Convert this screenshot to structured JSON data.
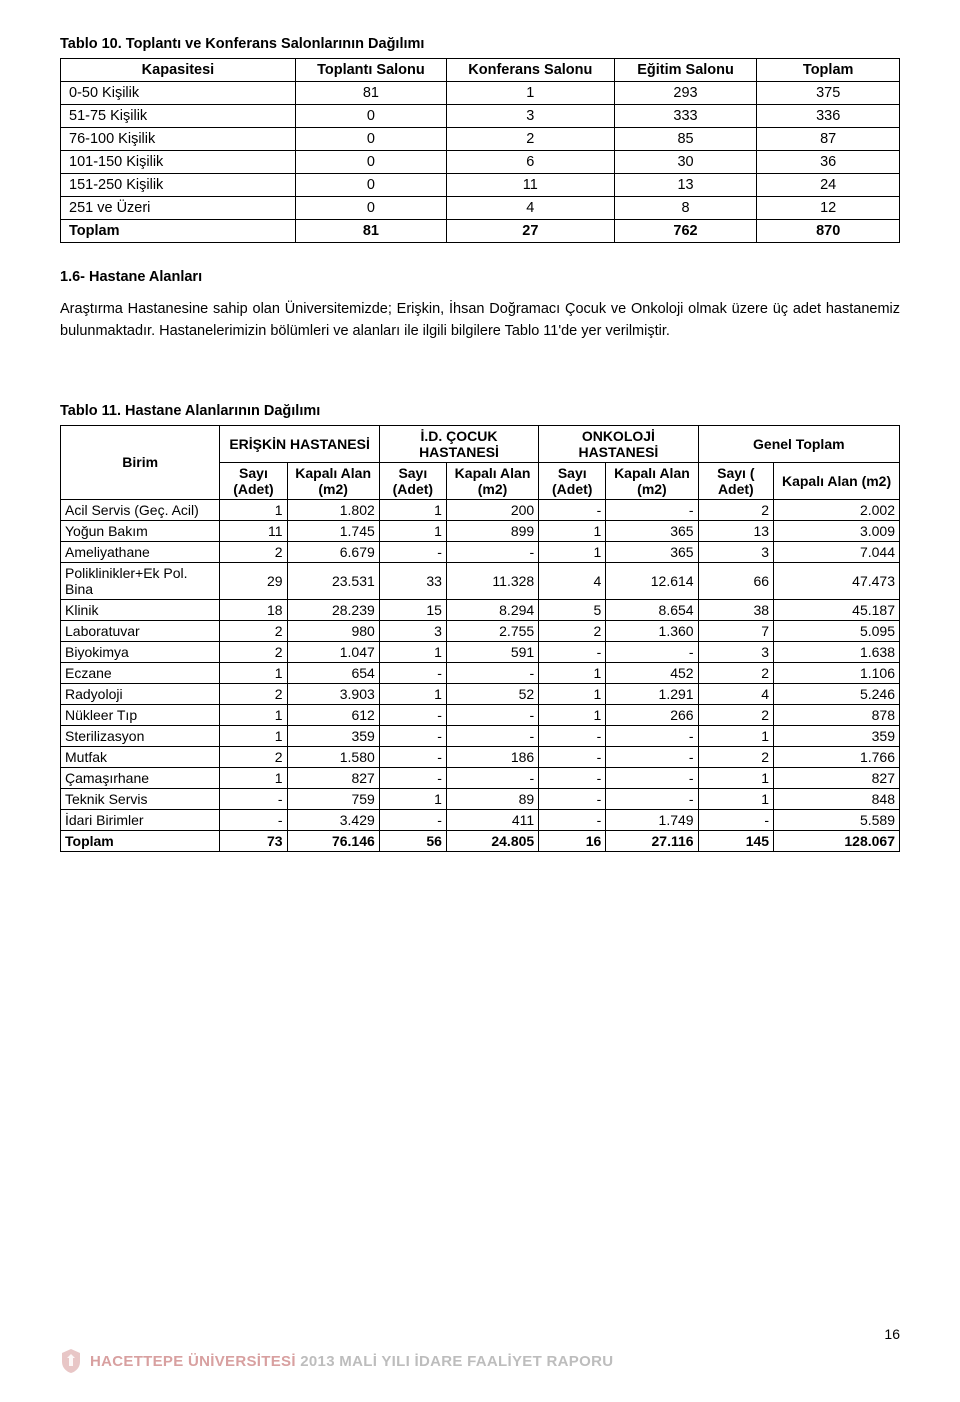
{
  "table10": {
    "title": "Tablo 10. Toplantı ve Konferans Salonlarının Dağılımı",
    "columns": [
      "Kapasitesi",
      "Toplantı Salonu",
      "Konferans Salonu",
      "Eğitim Salonu",
      "Toplam"
    ],
    "rows": [
      {
        "label": "0-50 Kişilik",
        "v": [
          "81",
          "1",
          "293",
          "375"
        ]
      },
      {
        "label": "51-75 Kişilik",
        "v": [
          "0",
          "3",
          "333",
          "336"
        ]
      },
      {
        "label": "76-100 Kişilik",
        "v": [
          "0",
          "2",
          "85",
          "87"
        ]
      },
      {
        "label": "101-150 Kişilik",
        "v": [
          "0",
          "6",
          "30",
          "36"
        ]
      },
      {
        "label": "151-250 Kişilik",
        "v": [
          "0",
          "11",
          "13",
          "24"
        ]
      },
      {
        "label": "251 ve Üzeri",
        "v": [
          "0",
          "4",
          "8",
          "12"
        ]
      }
    ],
    "total": {
      "label": "Toplam",
      "v": [
        "81",
        "27",
        "762",
        "870"
      ]
    }
  },
  "section": {
    "heading": "1.6- Hastane Alanları",
    "para": "Araştırma Hastanesine sahip olan Üniversitemizde; Erişkin, İhsan Doğramacı Çocuk ve Onkoloji olmak üzere üç adet hastanemiz bulunmaktadır. Hastanelerimizin bölümleri ve alanları ile ilgili bilgilere Tablo 11'de yer verilmiştir."
  },
  "table11": {
    "title": "Tablo 11. Hastane Alanlarının Dağılımı",
    "birim_label": "Birim",
    "group_headers": [
      "ERİŞKİN HASTANESİ",
      "İ.D. ÇOCUK HASTANESİ",
      "ONKOLOJİ HASTANESİ",
      "Genel Toplam"
    ],
    "sub_headers_pair": [
      "Sayı (Adet)",
      "Kapalı Alan (m2)"
    ],
    "sub_headers_total": [
      "Sayı ( Adet)",
      "Kapalı Alan (m2)"
    ],
    "col_widths": [
      "19%",
      "8%",
      "11%",
      "8%",
      "11%",
      "8%",
      "11%",
      "9%",
      "15%"
    ],
    "rows": [
      {
        "label": "Acil Servis (Geç. Acil)",
        "v": [
          "1",
          "1.802",
          "1",
          "200",
          "-",
          "-",
          "2",
          "2.002"
        ]
      },
      {
        "label": "Yoğun Bakım",
        "v": [
          "11",
          "1.745",
          "1",
          "899",
          "1",
          "365",
          "13",
          "3.009"
        ]
      },
      {
        "label": "Ameliyathane",
        "v": [
          "2",
          "6.679",
          "-",
          "-",
          "1",
          "365",
          "3",
          "7.044"
        ]
      },
      {
        "label": "Poliklinikler+Ek Pol. Bina",
        "v": [
          "29",
          "23.531",
          "33",
          "11.328",
          "4",
          "12.614",
          "66",
          "47.473"
        ]
      },
      {
        "label": "Klinik",
        "v": [
          "18",
          "28.239",
          "15",
          "8.294",
          "5",
          "8.654",
          "38",
          "45.187"
        ]
      },
      {
        "label": "Laboratuvar",
        "v": [
          "2",
          "980",
          "3",
          "2.755",
          "2",
          "1.360",
          "7",
          "5.095"
        ]
      },
      {
        "label": "Biyokimya",
        "v": [
          "2",
          "1.047",
          "1",
          "591",
          "-",
          "-",
          "3",
          "1.638"
        ]
      },
      {
        "label": "Eczane",
        "v": [
          "1",
          "654",
          "-",
          "-",
          "1",
          "452",
          "2",
          "1.106"
        ]
      },
      {
        "label": "Radyoloji",
        "v": [
          "2",
          "3.903",
          "1",
          "52",
          "1",
          "1.291",
          "4",
          "5.246"
        ]
      },
      {
        "label": "Nükleer Tıp",
        "v": [
          "1",
          "612",
          "-",
          "-",
          "1",
          "266",
          "2",
          "878"
        ]
      },
      {
        "label": "Sterilizasyon",
        "v": [
          "1",
          "359",
          "-",
          "-",
          "-",
          "-",
          "1",
          "359"
        ]
      },
      {
        "label": "Mutfak",
        "v": [
          "2",
          "1.580",
          "-",
          "186",
          "-",
          "-",
          "2",
          "1.766"
        ]
      },
      {
        "label": "Çamaşırhane",
        "v": [
          "1",
          "827",
          "-",
          "-",
          "-",
          "-",
          "1",
          "827"
        ]
      },
      {
        "label": "Teknik Servis",
        "v": [
          "-",
          "759",
          "1",
          "89",
          "-",
          "-",
          "1",
          "848"
        ]
      },
      {
        "label": "İdari Birimler",
        "v": [
          "-",
          "3.429",
          "-",
          "411",
          "-",
          "1.749",
          "-",
          "5.589"
        ]
      }
    ],
    "total": {
      "label": "Toplam",
      "v": [
        "73",
        "76.146",
        "56",
        "24.805",
        "16",
        "27.116",
        "145",
        "128.067"
      ]
    }
  },
  "footer": {
    "page_number": "16",
    "text_red": "HACETTEPE ÜNİVERSİTESİ",
    "text_gray": " 2013 MALİ YILI İDARE FAALİYET RAPORU"
  },
  "colors": {
    "text": "#000000",
    "border": "#000000",
    "footer_gray": "#bdbdbd",
    "footer_red": "#d8a0a0",
    "background": "#ffffff"
  },
  "typography": {
    "body_fontsize_pt": 11,
    "title_fontsize_pt": 11,
    "font_family": "Arial"
  }
}
